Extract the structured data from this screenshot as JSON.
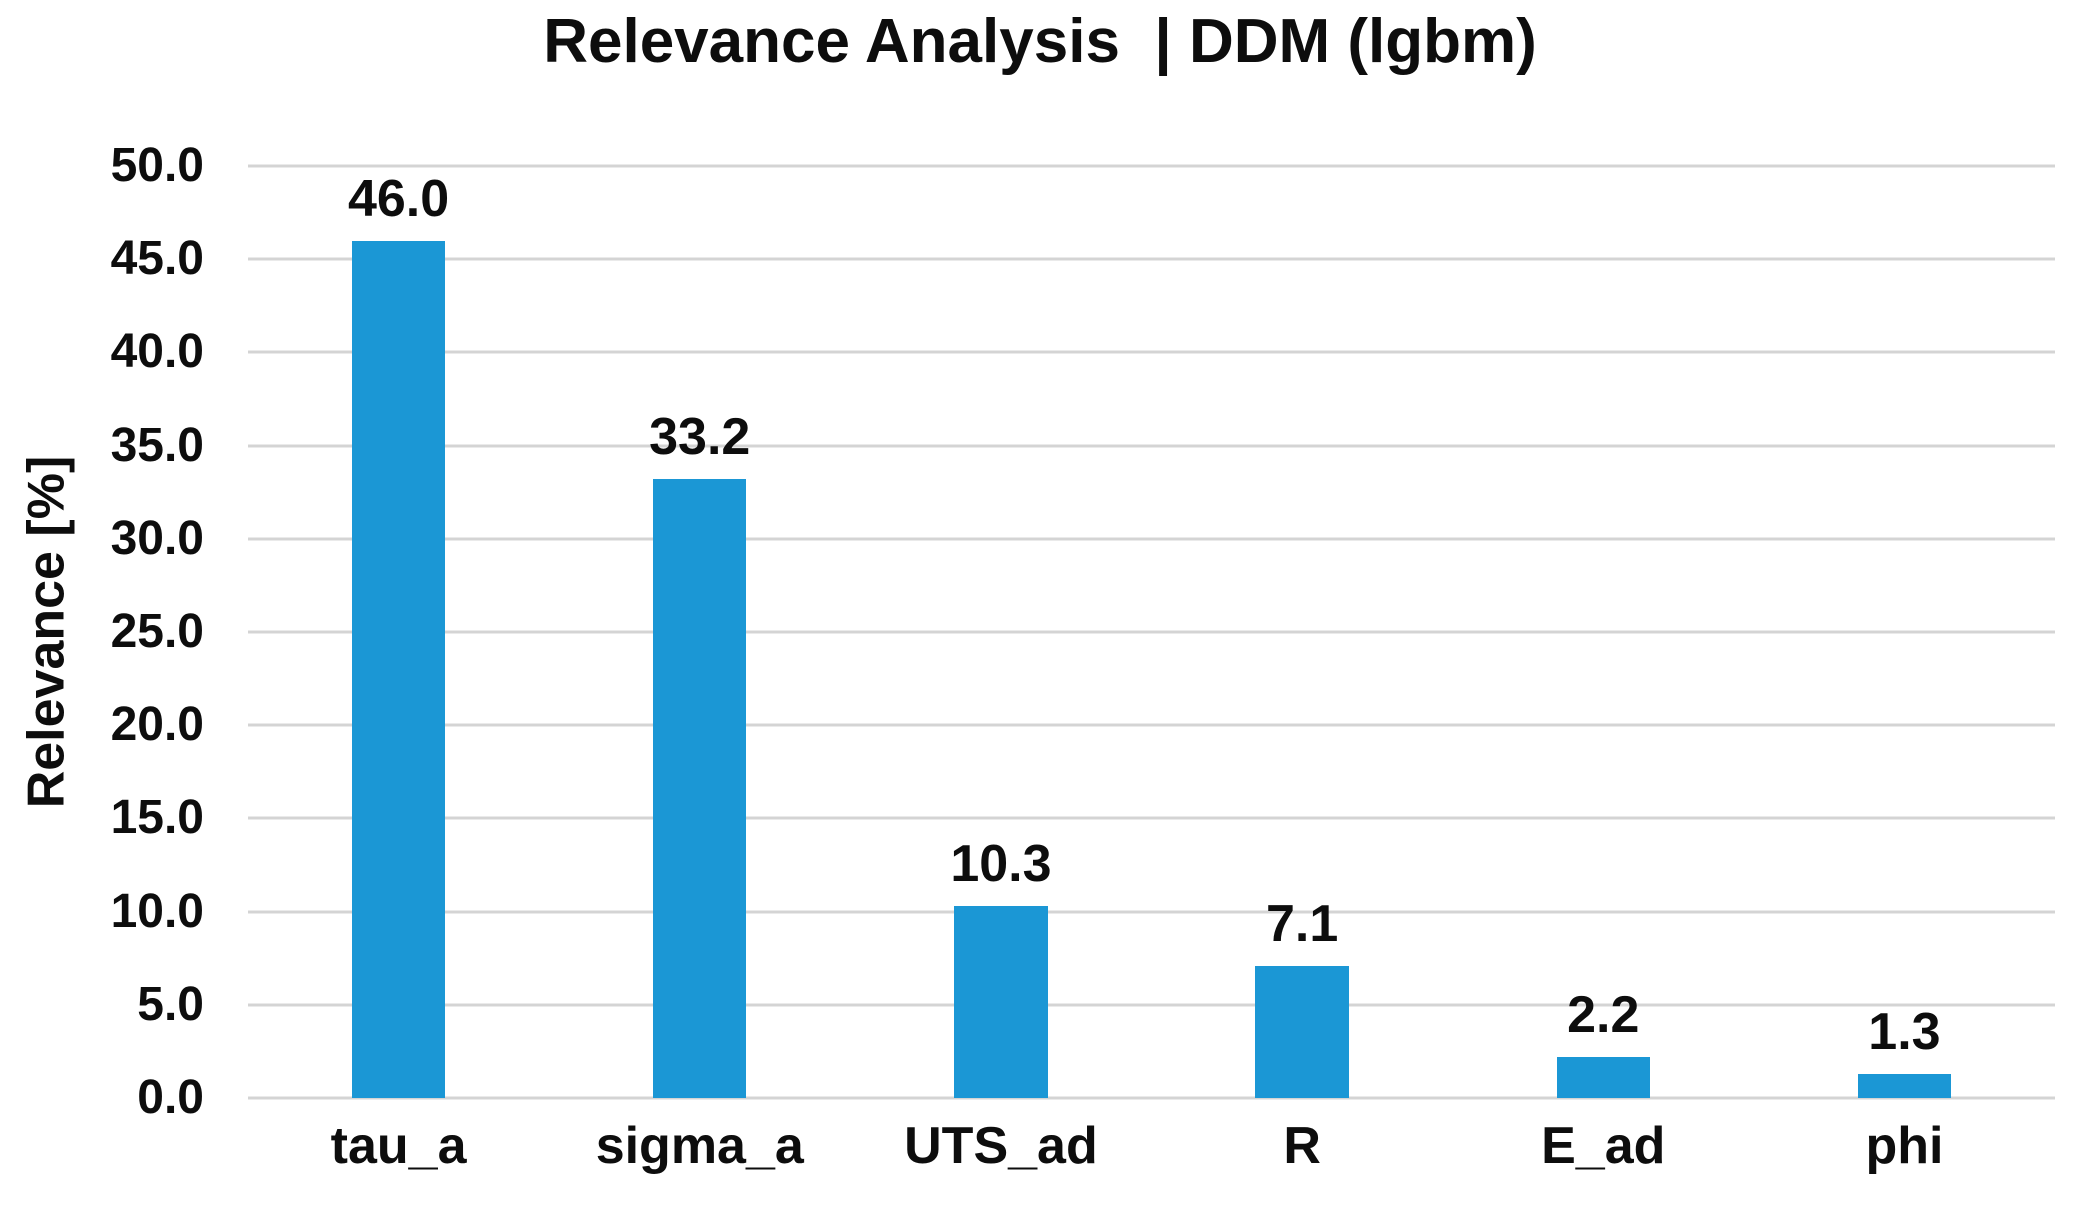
{
  "chart_data": {
    "type": "bar",
    "title": "Relevance Analysis  | DDM (lgbm)",
    "ylabel": "Relevance [%]",
    "xlabel": "",
    "categories": [
      "tau_a",
      "sigma_a",
      "UTS_ad",
      "R",
      "E_ad",
      "phi"
    ],
    "values": [
      46.0,
      33.2,
      10.3,
      7.1,
      2.2,
      1.3
    ],
    "value_labels": [
      "46.0",
      "33.2",
      "10.3",
      "7.1",
      "2.2",
      "1.3"
    ],
    "ylim": [
      0,
      50
    ],
    "ytick_step": 5,
    "ytick_labels": [
      "0.0",
      "5.0",
      "10.0",
      "15.0",
      "20.0",
      "25.0",
      "30.0",
      "35.0",
      "40.0",
      "45.0",
      "50.0"
    ],
    "grid": "horizontal",
    "legend": "none",
    "colors": {
      "bar": "#1b97d5",
      "gridline": "#d4d4d4",
      "text": "#0d0d0d",
      "background": "#ffffff"
    }
  }
}
